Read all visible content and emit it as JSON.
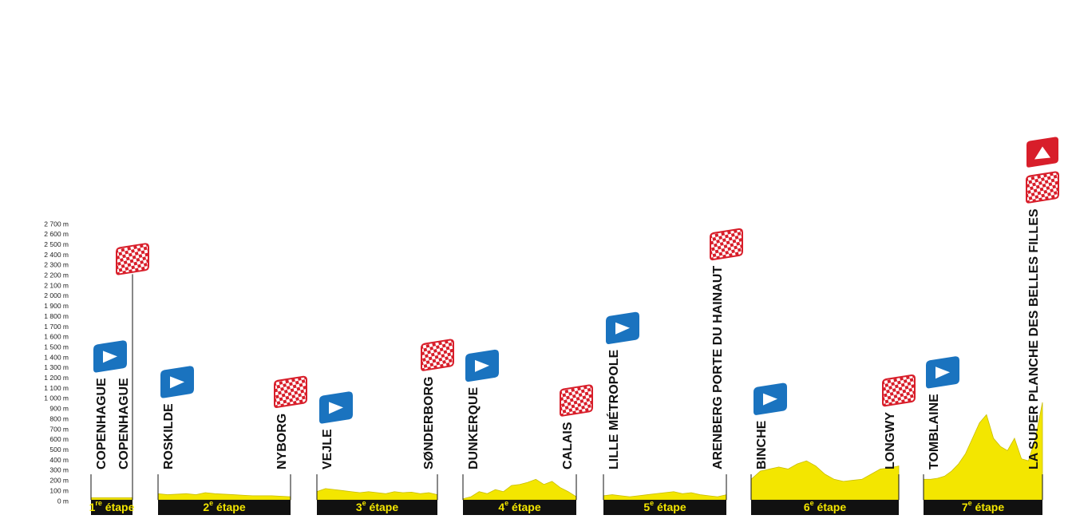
{
  "chart_data": {
    "type": "area",
    "ylim": [
      0,
      2700
    ],
    "yticks": [
      {
        "value": 0,
        "label": "0 m"
      },
      {
        "value": 100,
        "label": "100 m"
      },
      {
        "value": 200,
        "label": "200 m"
      },
      {
        "value": 300,
        "label": "300 m"
      },
      {
        "value": 400,
        "label": "400 m"
      },
      {
        "value": 500,
        "label": "500 m"
      },
      {
        "value": 600,
        "label": "600 m"
      },
      {
        "value": 700,
        "label": "700 m"
      },
      {
        "value": 800,
        "label": "800 m"
      },
      {
        "value": 900,
        "label": "900 m"
      },
      {
        "value": 1000,
        "label": "1 000 m"
      },
      {
        "value": 1100,
        "label": "1 100 m"
      },
      {
        "value": 1200,
        "label": "1 200 m"
      },
      {
        "value": 1300,
        "label": "1 300 m"
      },
      {
        "value": 1400,
        "label": "1 400 m"
      },
      {
        "value": 1500,
        "label": "1 500 m"
      },
      {
        "value": 1600,
        "label": "1 600 m"
      },
      {
        "value": 1700,
        "label": "1 700 m"
      },
      {
        "value": 1800,
        "label": "1 800 m"
      },
      {
        "value": 1900,
        "label": "1 900 m"
      },
      {
        "value": 2000,
        "label": "2 000 m"
      },
      {
        "value": 2100,
        "label": "2 100 m"
      },
      {
        "value": 2200,
        "label": "2 200 m"
      },
      {
        "value": 2300,
        "label": "2 300 m"
      },
      {
        "value": 2400,
        "label": "2 400 m"
      },
      {
        "value": 2500,
        "label": "2 500 m"
      },
      {
        "value": 2600,
        "label": "2 600 m"
      },
      {
        "value": 2700,
        "label": "2 700 m"
      }
    ],
    "color": "#f3e600",
    "stages": [
      {
        "start": "COPENHAGUE",
        "finish": "COPENHAGUE",
        "number": "1",
        "suffix": "re",
        "word": "étape",
        "values": [
          20,
          20,
          20,
          20,
          20,
          20,
          20,
          20
        ]
      },
      {
        "start": "ROSKILDE",
        "finish": "NYBORG",
        "number": "2",
        "suffix": "e",
        "word": "étape",
        "values": [
          60,
          50,
          55,
          60,
          50,
          70,
          60,
          55,
          50,
          45,
          40,
          40,
          40,
          35,
          30
        ]
      },
      {
        "start": "VEJLE",
        "finish": "SØNDERBORG",
        "number": "3",
        "suffix": "e",
        "word": "étape",
        "values": [
          80,
          110,
          100,
          90,
          80,
          70,
          80,
          70,
          60,
          80,
          70,
          75,
          60,
          70,
          50
        ]
      },
      {
        "start": "DUNKERQUE",
        "finish": "CALAIS",
        "number": "4",
        "suffix": "e",
        "word": "étape",
        "values": [
          10,
          30,
          80,
          60,
          100,
          80,
          140,
          150,
          170,
          200,
          150,
          180,
          120,
          80,
          30
        ]
      },
      {
        "start": "LILLE MÉTROPOLE",
        "finish": "ARENBERG PORTE DU HAINAUT",
        "number": "5",
        "suffix": "e",
        "word": "étape",
        "values": [
          40,
          50,
          40,
          30,
          40,
          50,
          60,
          70,
          80,
          60,
          70,
          50,
          40,
          30,
          50
        ]
      },
      {
        "start": "BINCHE",
        "finish": "LONGWY",
        "number": "6",
        "suffix": "e",
        "word": "étape",
        "values": [
          200,
          280,
          300,
          320,
          300,
          350,
          380,
          330,
          250,
          200,
          180,
          190,
          200,
          250,
          300,
          310,
          330
        ]
      },
      {
        "start": "TOMBLAINE",
        "finish": "LA SUPER PLANCHE DES BELLES FILLES",
        "number": "7",
        "suffix": "e",
        "word": "étape",
        "values": [
          200,
          200,
          210,
          230,
          280,
          350,
          450,
          600,
          750,
          830,
          600,
          520,
          480,
          600,
          400,
          380,
          600,
          950
        ]
      }
    ]
  }
}
